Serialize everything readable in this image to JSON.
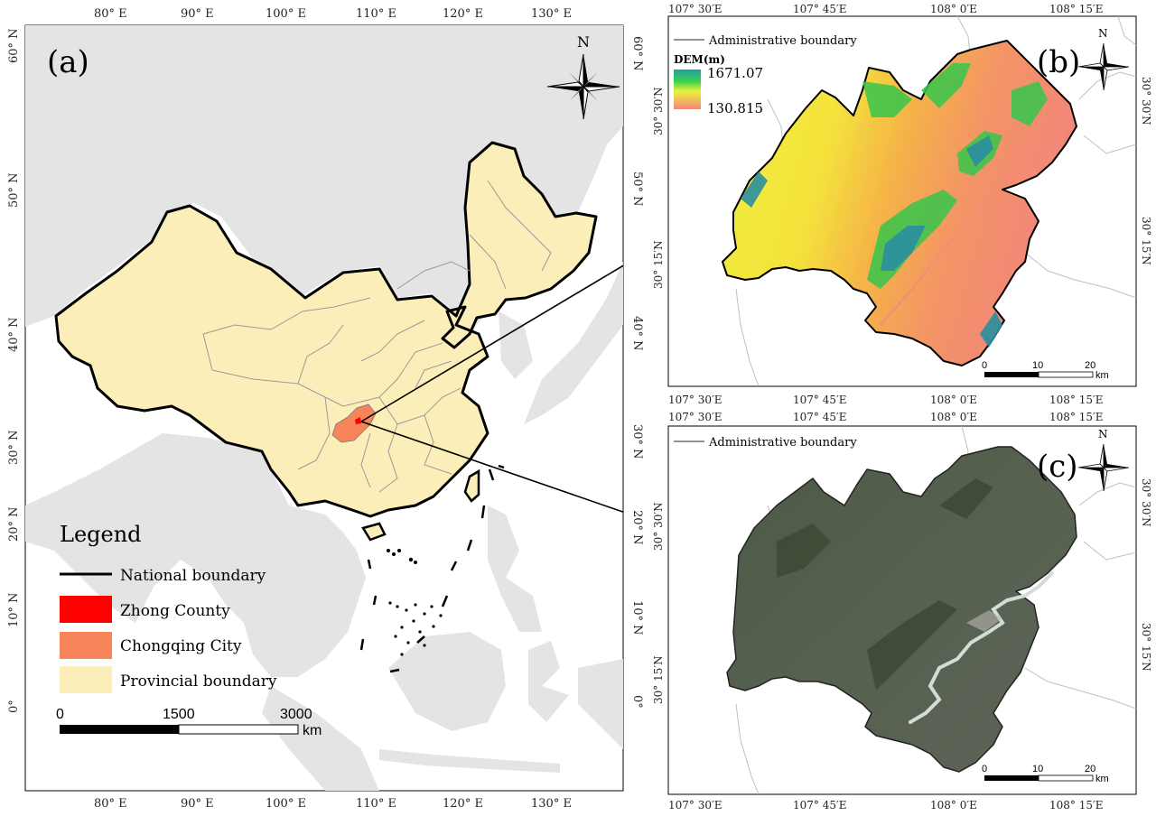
{
  "colors": {
    "land": "#e4e4e4",
    "sea": "#ffffff",
    "china_fill": "#fbeeb9",
    "zhong_county": "#ff0000",
    "chongqing": "#f8855a",
    "national_border": "#000000",
    "province_line": "#9a9a9a"
  },
  "panel_a": {
    "label": "(a)",
    "north": "N",
    "top_ticks": [
      "80° E",
      "90° E",
      "100° E",
      "110° E",
      "120° E",
      "130° E"
    ],
    "bottom_ticks": [
      "80° E",
      "90° E",
      "100° E",
      "110° E",
      "120° E",
      "130° E"
    ],
    "left_ticks": [
      "60° N",
      "50° N",
      "40° N",
      "30° N",
      "20° N",
      "10° N",
      "0°"
    ],
    "right_ticks": [
      "60° N",
      "50° N",
      "40° N",
      "30° N",
      "20° N",
      "10° N",
      "0°"
    ],
    "legend": {
      "title": "Legend",
      "items": [
        {
          "label": "National boundary",
          "symbol": "line"
        },
        {
          "label": "Zhong County",
          "symbol": "red"
        },
        {
          "label": "Chongqing City",
          "symbol": "orange"
        },
        {
          "label": "Provincial boundary",
          "symbol": "yellow"
        }
      ]
    },
    "scalebar": {
      "labels": [
        "0",
        "1500",
        "3000"
      ],
      "unit": "km"
    }
  },
  "panel_b": {
    "label": "(b)",
    "north": "N",
    "boundary_legend": "Administrative boundary",
    "dem_title": "DEM(m)",
    "dem_max": "1671.07",
    "dem_min": "130.815",
    "top_ticks": [
      "107° 30′E",
      "107° 45′E",
      "108° 0′E",
      "108° 15′E"
    ],
    "bottom_ticks": [
      "107° 30′E",
      "107° 45′E",
      "108° 0′E",
      "108° 15′E"
    ],
    "left_ticks": [
      "30° 30′N",
      "30° 15′N"
    ],
    "right_ticks": [
      "30° 30′N",
      "30° 15′N"
    ],
    "scalebar": {
      "labels": [
        "0",
        "10",
        "20"
      ],
      "unit": "km"
    }
  },
  "panel_c": {
    "label": "(c)",
    "north": "N",
    "boundary_legend": "Administrative boundary",
    "top_ticks": [
      "107° 30′E",
      "107° 45′E",
      "108° 0′E",
      "108° 15′E"
    ],
    "bottom_ticks": [
      "107° 30′E",
      "107° 45′E",
      "108° 0′E",
      "108° 15′E"
    ],
    "left_ticks": [
      "30° 30′N",
      "30° 15′N"
    ],
    "right_ticks": [
      "30° 30′N",
      "30° 15′N"
    ],
    "scalebar": {
      "labels": [
        "0",
        "10",
        "20"
      ],
      "unit": "km"
    }
  }
}
